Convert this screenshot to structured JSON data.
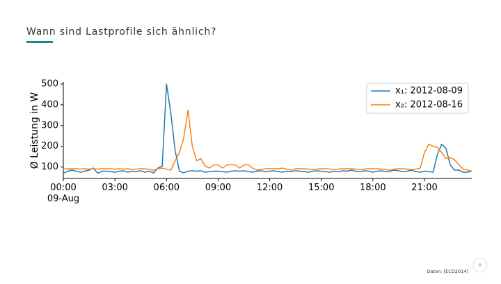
{
  "slide": {
    "title": "Wann sind Lastprofile sich ähnlich?",
    "source": "Daten: [ECO2014]",
    "page_number": "8"
  },
  "chart_data": {
    "type": "line",
    "ylabel": "Ø Leistung in W",
    "x": [
      0,
      0.25,
      0.5,
      0.75,
      1,
      1.25,
      1.5,
      1.75,
      2,
      2.25,
      2.5,
      2.75,
      3,
      3.25,
      3.5,
      3.75,
      4,
      4.25,
      4.5,
      4.75,
      5,
      5.25,
      5.5,
      5.75,
      6,
      6.25,
      6.5,
      6.75,
      7,
      7.25,
      7.5,
      7.75,
      8,
      8.25,
      8.5,
      8.75,
      9,
      9.25,
      9.5,
      9.75,
      10,
      10.25,
      10.5,
      10.75,
      11,
      11.25,
      11.5,
      11.75,
      12,
      12.25,
      12.5,
      12.75,
      13,
      13.25,
      13.5,
      13.75,
      14,
      14.25,
      14.5,
      14.75,
      15,
      15.25,
      15.5,
      15.75,
      16,
      16.25,
      16.5,
      16.75,
      17,
      17.25,
      17.5,
      17.75,
      18,
      18.25,
      18.5,
      18.75,
      19,
      19.25,
      19.5,
      19.75,
      20,
      20.25,
      20.5,
      20.75,
      21,
      21.25,
      21.5,
      21.75,
      22,
      22.25,
      22.5,
      22.75,
      23,
      23.25,
      23.5,
      23.75
    ],
    "series": [
      {
        "name": "x₁: 2012-08-09",
        "color": "#1f77b4",
        "values": [
          70,
          80,
          85,
          80,
          75,
          80,
          85,
          95,
          70,
          80,
          80,
          78,
          75,
          80,
          82,
          75,
          80,
          78,
          82,
          75,
          80,
          72,
          95,
          105,
          500,
          360,
          180,
          80,
          72,
          80,
          82,
          80,
          82,
          75,
          78,
          80,
          80,
          78,
          75,
          80,
          82,
          80,
          82,
          78,
          75,
          80,
          82,
          78,
          80,
          82,
          78,
          75,
          80,
          78,
          82,
          80,
          78,
          75,
          80,
          82,
          80,
          78,
          75,
          80,
          78,
          82,
          80,
          85,
          80,
          78,
          82,
          80,
          75,
          80,
          82,
          78,
          80,
          85,
          82,
          78,
          80,
          85,
          78,
          75,
          80,
          78,
          75,
          160,
          210,
          190,
          110,
          85,
          85,
          75,
          75,
          80
        ]
      },
      {
        "name": "x₂: 2012-08-16",
        "color": "#ff7f0e",
        "values": [
          90,
          92,
          92,
          92,
          90,
          92,
          90,
          92,
          90,
          92,
          92,
          92,
          90,
          92,
          90,
          92,
          88,
          90,
          92,
          92,
          88,
          85,
          92,
          95,
          90,
          85,
          130,
          170,
          240,
          375,
          200,
          130,
          140,
          105,
          95,
          110,
          110,
          95,
          110,
          112,
          110,
          95,
          110,
          112,
          95,
          85,
          88,
          92,
          92,
          92,
          92,
          95,
          90,
          85,
          92,
          92,
          92,
          90,
          88,
          90,
          92,
          92,
          90,
          88,
          90,
          92,
          92,
          92,
          90,
          88,
          90,
          92,
          92,
          92,
          90,
          88,
          85,
          90,
          92,
          92,
          90,
          88,
          90,
          95,
          170,
          210,
          200,
          195,
          170,
          140,
          145,
          135,
          110,
          90,
          85,
          80
        ]
      }
    ],
    "xlim": [
      0,
      23.75
    ],
    "ylim": [
      45,
      510
    ],
    "xticks": [
      {
        "value": 0,
        "label": "00:00\n09-Aug"
      },
      {
        "value": 3,
        "label": "03:00"
      },
      {
        "value": 6,
        "label": "06:00"
      },
      {
        "value": 9,
        "label": "09:00"
      },
      {
        "value": 12,
        "label": "12:00"
      },
      {
        "value": 15,
        "label": "15:00"
      },
      {
        "value": 18,
        "label": "18:00"
      },
      {
        "value": 21,
        "label": "21:00"
      }
    ],
    "yticks": [
      100,
      200,
      300,
      400,
      500
    ],
    "legend": "upper right"
  }
}
